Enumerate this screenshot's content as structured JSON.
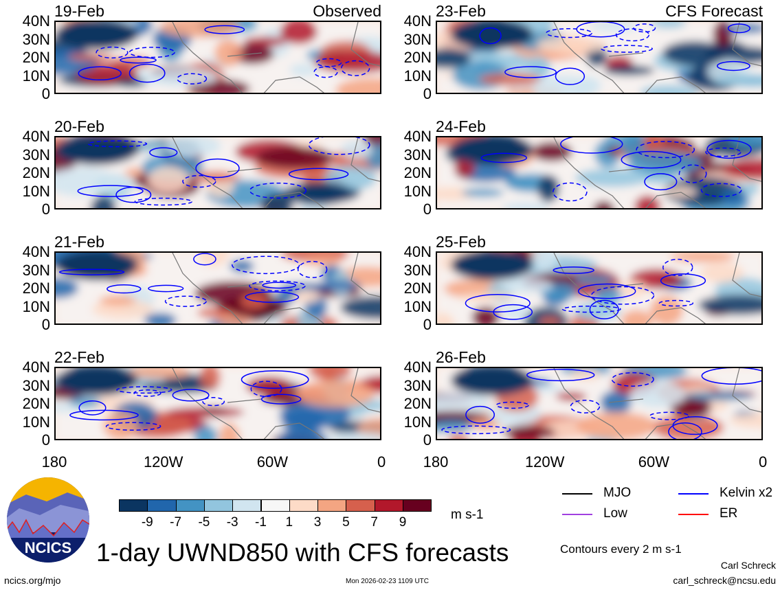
{
  "panels": [
    {
      "date": "19-Feb",
      "label": "Observed"
    },
    {
      "date": "23-Feb",
      "label": "CFS Forecast"
    },
    {
      "date": "20-Feb",
      "label": ""
    },
    {
      "date": "24-Feb",
      "label": ""
    },
    {
      "date": "21-Feb",
      "label": ""
    },
    {
      "date": "25-Feb",
      "label": ""
    },
    {
      "date": "22-Feb",
      "label": ""
    },
    {
      "date": "26-Feb",
      "label": ""
    }
  ],
  "lat_ticks": [
    "40N",
    "30N",
    "20N",
    "10N",
    "0"
  ],
  "lon_ticks": [
    "180",
    "120W",
    "60W",
    "0"
  ],
  "colorbar": {
    "colors": [
      "#0b3561",
      "#2166ac",
      "#4393c3",
      "#92c5de",
      "#d1e5f0",
      "#f7f7f7",
      "#fddbc7",
      "#f4a582",
      "#d6604d",
      "#b2182b",
      "#67001f"
    ],
    "labels": [
      "-9",
      "-7",
      "-5",
      "-3",
      "-1",
      "1",
      "3",
      "5",
      "7",
      "9"
    ],
    "units": "m s-1"
  },
  "legend": [
    {
      "label": "MJO",
      "color": "#000000"
    },
    {
      "label": "Kelvin x2",
      "color": "#0000ff"
    },
    {
      "label": "Low",
      "color": "#a040e0"
    },
    {
      "label": "ER",
      "color": "#ff0000"
    }
  ],
  "contour_note": "Contours every 2 m s-1",
  "title": "1-day UWND850 with CFS forecasts",
  "logo_text": "NCICS",
  "footer": {
    "site": "ncics.org/mjo",
    "timestamp": "Mon 2026-02-23 1109 UTC",
    "author": "Carl Schreck",
    "email": "carl_schreck@ncsu.edu"
  }
}
